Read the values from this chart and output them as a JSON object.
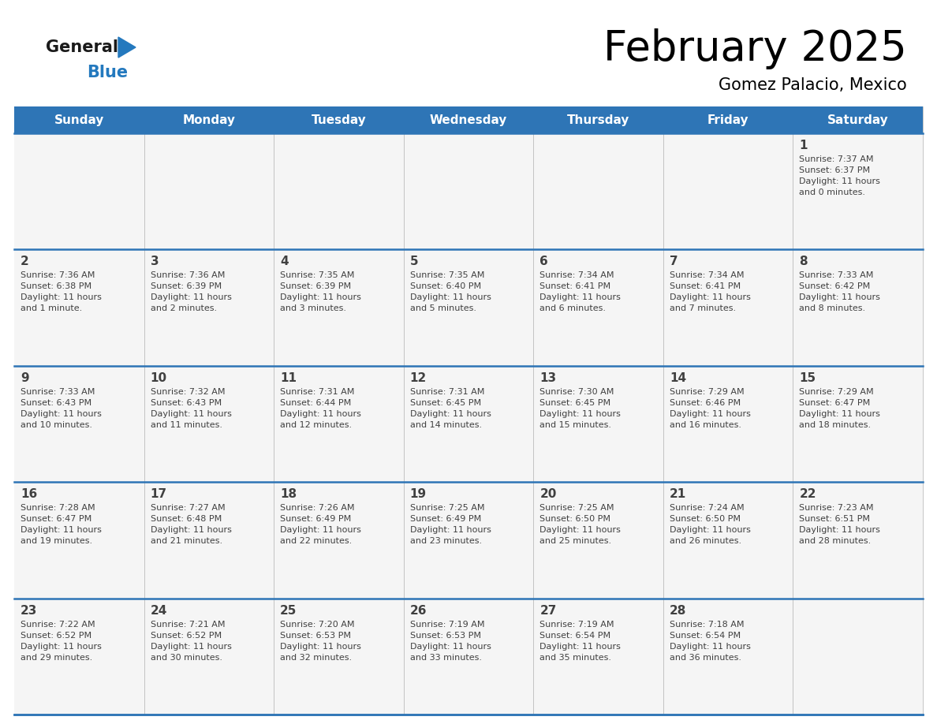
{
  "title": "February 2025",
  "subtitle": "Gomez Palacio, Mexico",
  "header_bg": "#2E75B6",
  "header_text_color": "#FFFFFF",
  "cell_bg": "#F5F5F5",
  "cell_border_color": "#2E75B6",
  "text_color": "#404040",
  "days_of_week": [
    "Sunday",
    "Monday",
    "Tuesday",
    "Wednesday",
    "Thursday",
    "Friday",
    "Saturday"
  ],
  "calendar_data": [
    [
      {
        "day": "",
        "info": ""
      },
      {
        "day": "",
        "info": ""
      },
      {
        "day": "",
        "info": ""
      },
      {
        "day": "",
        "info": ""
      },
      {
        "day": "",
        "info": ""
      },
      {
        "day": "",
        "info": ""
      },
      {
        "day": "1",
        "info": "Sunrise: 7:37 AM\nSunset: 6:37 PM\nDaylight: 11 hours\nand 0 minutes."
      }
    ],
    [
      {
        "day": "2",
        "info": "Sunrise: 7:36 AM\nSunset: 6:38 PM\nDaylight: 11 hours\nand 1 minute."
      },
      {
        "day": "3",
        "info": "Sunrise: 7:36 AM\nSunset: 6:39 PM\nDaylight: 11 hours\nand 2 minutes."
      },
      {
        "day": "4",
        "info": "Sunrise: 7:35 AM\nSunset: 6:39 PM\nDaylight: 11 hours\nand 3 minutes."
      },
      {
        "day": "5",
        "info": "Sunrise: 7:35 AM\nSunset: 6:40 PM\nDaylight: 11 hours\nand 5 minutes."
      },
      {
        "day": "6",
        "info": "Sunrise: 7:34 AM\nSunset: 6:41 PM\nDaylight: 11 hours\nand 6 minutes."
      },
      {
        "day": "7",
        "info": "Sunrise: 7:34 AM\nSunset: 6:41 PM\nDaylight: 11 hours\nand 7 minutes."
      },
      {
        "day": "8",
        "info": "Sunrise: 7:33 AM\nSunset: 6:42 PM\nDaylight: 11 hours\nand 8 minutes."
      }
    ],
    [
      {
        "day": "9",
        "info": "Sunrise: 7:33 AM\nSunset: 6:43 PM\nDaylight: 11 hours\nand 10 minutes."
      },
      {
        "day": "10",
        "info": "Sunrise: 7:32 AM\nSunset: 6:43 PM\nDaylight: 11 hours\nand 11 minutes."
      },
      {
        "day": "11",
        "info": "Sunrise: 7:31 AM\nSunset: 6:44 PM\nDaylight: 11 hours\nand 12 minutes."
      },
      {
        "day": "12",
        "info": "Sunrise: 7:31 AM\nSunset: 6:45 PM\nDaylight: 11 hours\nand 14 minutes."
      },
      {
        "day": "13",
        "info": "Sunrise: 7:30 AM\nSunset: 6:45 PM\nDaylight: 11 hours\nand 15 minutes."
      },
      {
        "day": "14",
        "info": "Sunrise: 7:29 AM\nSunset: 6:46 PM\nDaylight: 11 hours\nand 16 minutes."
      },
      {
        "day": "15",
        "info": "Sunrise: 7:29 AM\nSunset: 6:47 PM\nDaylight: 11 hours\nand 18 minutes."
      }
    ],
    [
      {
        "day": "16",
        "info": "Sunrise: 7:28 AM\nSunset: 6:47 PM\nDaylight: 11 hours\nand 19 minutes."
      },
      {
        "day": "17",
        "info": "Sunrise: 7:27 AM\nSunset: 6:48 PM\nDaylight: 11 hours\nand 21 minutes."
      },
      {
        "day": "18",
        "info": "Sunrise: 7:26 AM\nSunset: 6:49 PM\nDaylight: 11 hours\nand 22 minutes."
      },
      {
        "day": "19",
        "info": "Sunrise: 7:25 AM\nSunset: 6:49 PM\nDaylight: 11 hours\nand 23 minutes."
      },
      {
        "day": "20",
        "info": "Sunrise: 7:25 AM\nSunset: 6:50 PM\nDaylight: 11 hours\nand 25 minutes."
      },
      {
        "day": "21",
        "info": "Sunrise: 7:24 AM\nSunset: 6:50 PM\nDaylight: 11 hours\nand 26 minutes."
      },
      {
        "day": "22",
        "info": "Sunrise: 7:23 AM\nSunset: 6:51 PM\nDaylight: 11 hours\nand 28 minutes."
      }
    ],
    [
      {
        "day": "23",
        "info": "Sunrise: 7:22 AM\nSunset: 6:52 PM\nDaylight: 11 hours\nand 29 minutes."
      },
      {
        "day": "24",
        "info": "Sunrise: 7:21 AM\nSunset: 6:52 PM\nDaylight: 11 hours\nand 30 minutes."
      },
      {
        "day": "25",
        "info": "Sunrise: 7:20 AM\nSunset: 6:53 PM\nDaylight: 11 hours\nand 32 minutes."
      },
      {
        "day": "26",
        "info": "Sunrise: 7:19 AM\nSunset: 6:53 PM\nDaylight: 11 hours\nand 33 minutes."
      },
      {
        "day": "27",
        "info": "Sunrise: 7:19 AM\nSunset: 6:54 PM\nDaylight: 11 hours\nand 35 minutes."
      },
      {
        "day": "28",
        "info": "Sunrise: 7:18 AM\nSunset: 6:54 PM\nDaylight: 11 hours\nand 36 minutes."
      },
      {
        "day": "",
        "info": ""
      }
    ]
  ],
  "logo_general_color": "#1a1a1a",
  "logo_blue_color": "#2479BE",
  "logo_triangle_color": "#2479BE",
  "fig_width": 11.88,
  "fig_height": 9.18,
  "dpi": 100
}
